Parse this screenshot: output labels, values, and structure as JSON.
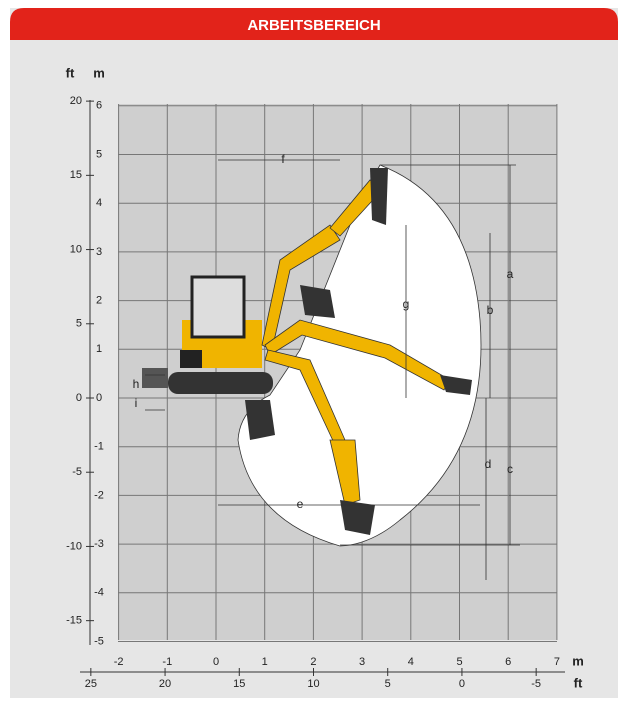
{
  "header": {
    "title": "ARBEITSBEREICH"
  },
  "left_axis": {
    "ft_label": "ft",
    "m_label": "m",
    "m_ticks": [
      6,
      5,
      4,
      3,
      2,
      1,
      0,
      -1,
      -2,
      -3,
      -4,
      -5
    ],
    "ft_ticks": [
      20,
      15,
      10,
      5,
      0,
      -5,
      -10,
      -15
    ]
  },
  "bottom_axis": {
    "m_label": "m",
    "ft_label": "ft",
    "m_ticks": [
      -2,
      -1,
      0,
      1,
      2,
      3,
      4,
      5,
      6,
      7
    ],
    "ft_ticks": [
      25,
      20,
      15,
      10,
      5,
      0,
      -5
    ]
  },
  "dimensions": {
    "a": "a",
    "b": "b",
    "c": "c",
    "d": "d",
    "e": "e",
    "f": "f",
    "g": "g",
    "h": "h",
    "i": "i"
  }
}
